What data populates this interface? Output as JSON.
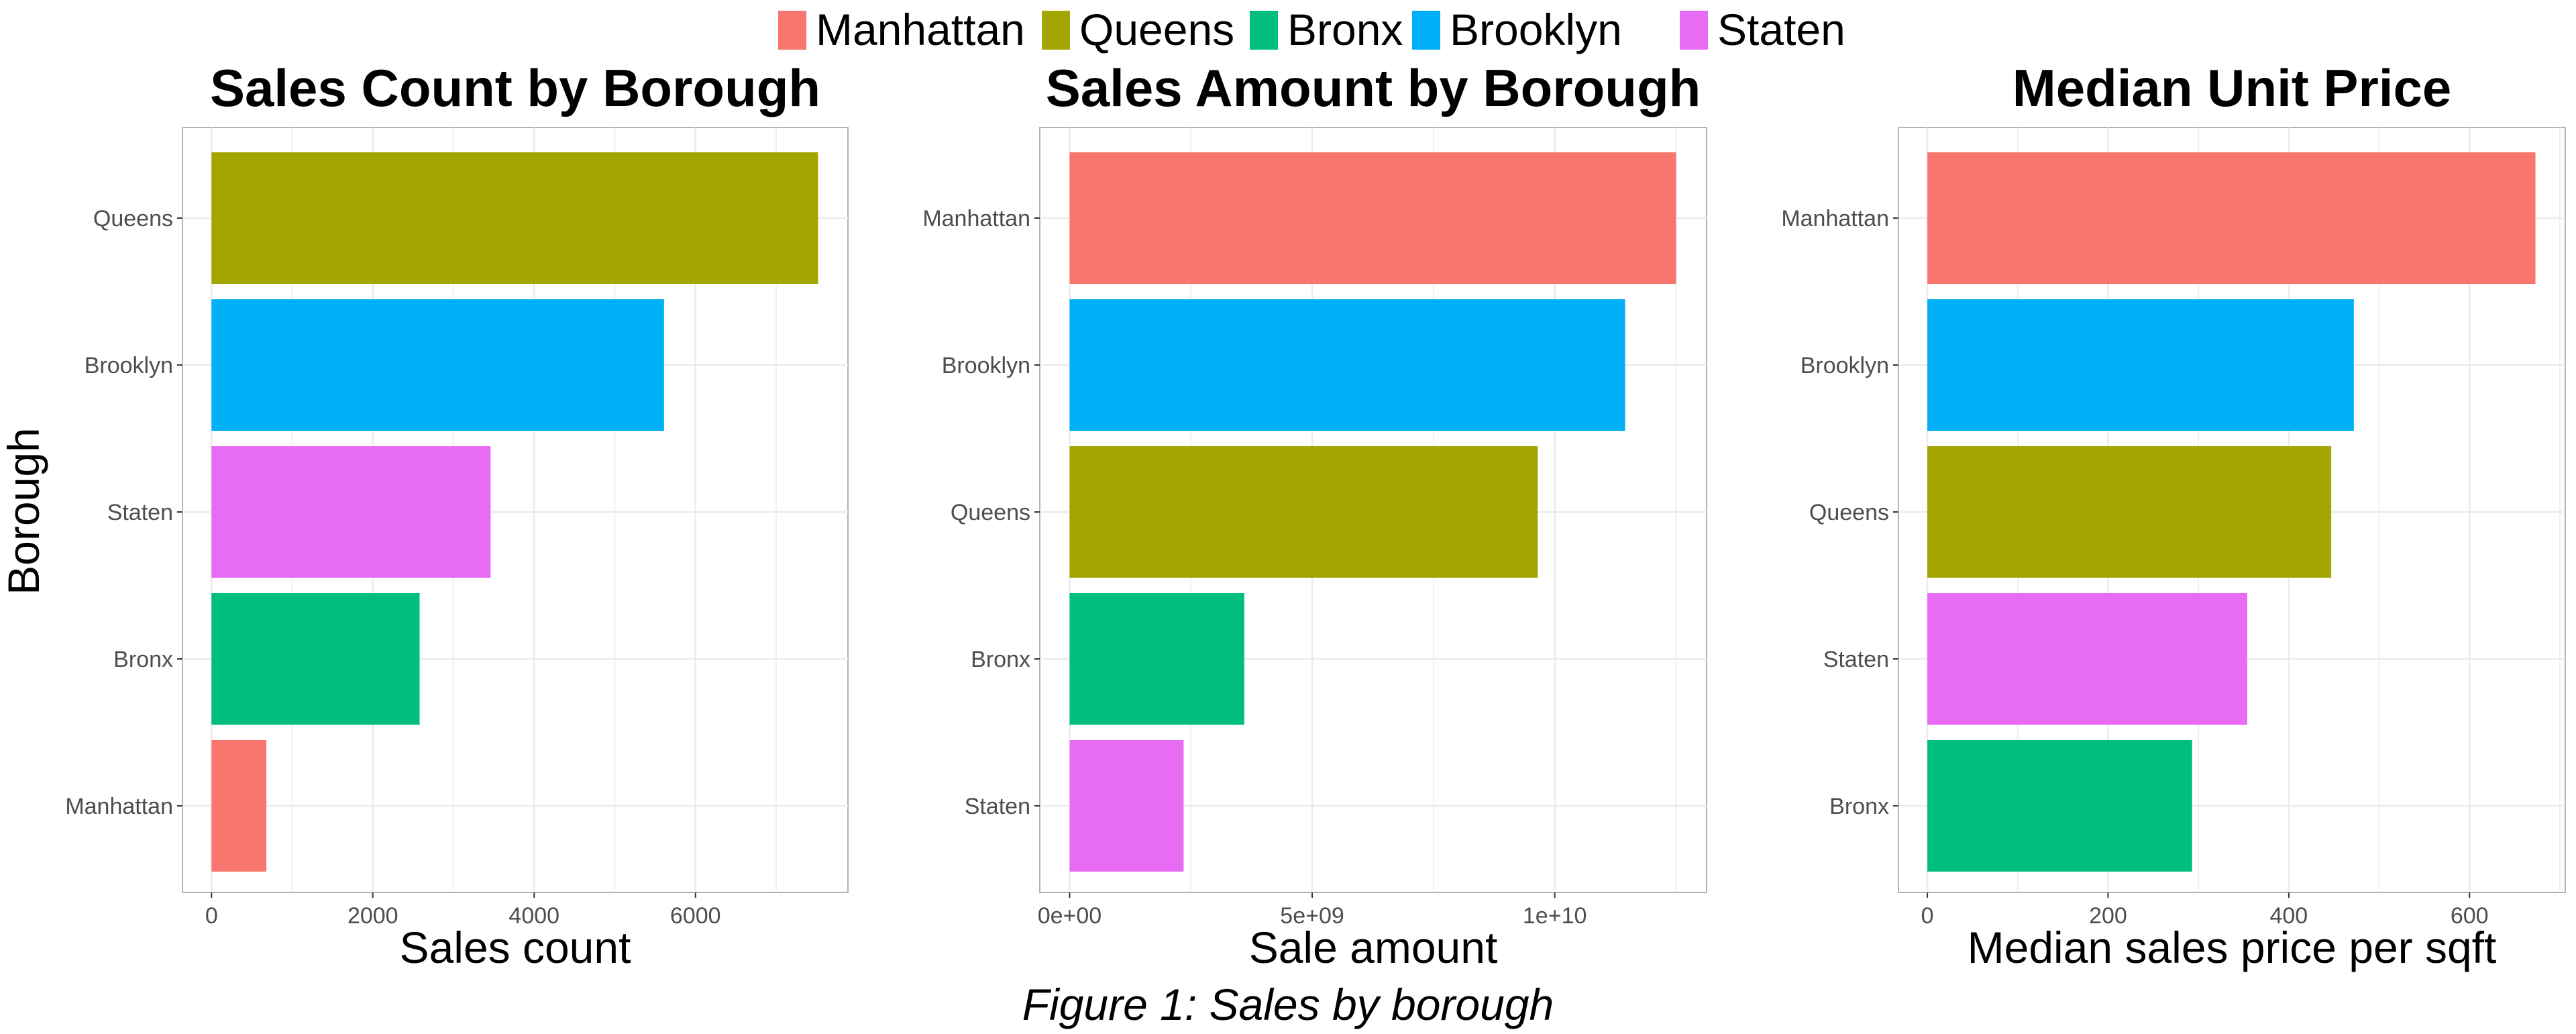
{
  "legend": {
    "placement": "top",
    "items": [
      {
        "label": "Manhattan",
        "color": "#F8766D"
      },
      {
        "label": "Queens",
        "color": "#A3A500"
      },
      {
        "label": "Bronx",
        "color": "#00BF7D"
      },
      {
        "label": "Brooklyn",
        "color": "#00B0F6"
      },
      {
        "label": "Staten",
        "color": "#E76BF3"
      }
    ]
  },
  "shared_ylabel": "Borough",
  "caption": "Figure 1: Sales by borough",
  "chart_data": [
    {
      "type": "bar",
      "orientation": "horizontal",
      "title": "Sales Count by Borough",
      "xlabel": "Sales count",
      "categories": [
        "Queens",
        "Brooklyn",
        "Staten",
        "Bronx",
        "Manhattan"
      ],
      "values": [
        7520,
        5610,
        3460,
        2580,
        680
      ],
      "colors": [
        "#A3A500",
        "#00B0F6",
        "#E76BF3",
        "#00BF7D",
        "#F8766D"
      ],
      "xlim": [
        -360,
        7890
      ],
      "xticks": [
        0,
        2000,
        4000,
        6000
      ],
      "xtick_labels": [
        "0",
        "2000",
        "4000",
        "6000"
      ],
      "grid": true
    },
    {
      "type": "bar",
      "orientation": "horizontal",
      "title": "Sales Amount by Borough",
      "xlabel": "Sale amount",
      "categories": [
        "Manhattan",
        "Brooklyn",
        "Queens",
        "Bronx",
        "Staten"
      ],
      "values": [
        12500000000,
        11450000000,
        9650000000,
        3600000000,
        2350000000
      ],
      "colors": [
        "#F8766D",
        "#00B0F6",
        "#A3A500",
        "#00BF7D",
        "#E76BF3"
      ],
      "xlim": [
        -615000000,
        13130000000
      ],
      "xticks": [
        0,
        5000000000,
        10000000000
      ],
      "xtick_labels": [
        "0e+00",
        "5e+09",
        "1e+10"
      ],
      "grid": true
    },
    {
      "type": "bar",
      "orientation": "horizontal",
      "title": "Median Unit Price",
      "xlabel": "Median sales price per sqft",
      "categories": [
        "Manhattan",
        "Brooklyn",
        "Queens",
        "Staten",
        "Bronx"
      ],
      "values": [
        673,
        472,
        447,
        354,
        293
      ],
      "colors": [
        "#F8766D",
        "#00B0F6",
        "#A3A500",
        "#E76BF3",
        "#00BF7D"
      ],
      "xlim": [
        -32,
        706
      ],
      "xticks": [
        0,
        200,
        400,
        600
      ],
      "xtick_labels": [
        "0",
        "200",
        "400",
        "600"
      ],
      "grid": true
    }
  ]
}
